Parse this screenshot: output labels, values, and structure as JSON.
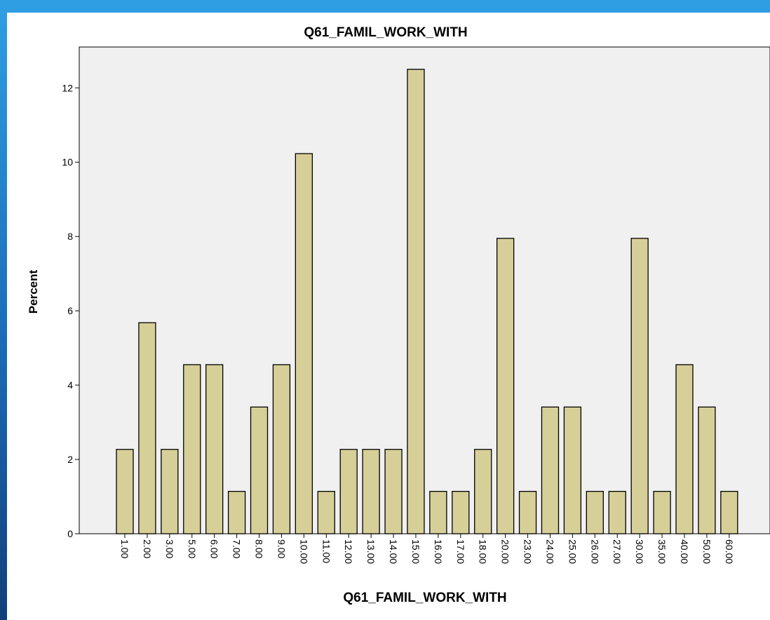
{
  "chart_data": {
    "type": "bar",
    "title": "Q61_FAMIL_WORK_WITH",
    "xlabel": "Q61_FAMIL_WORK_WITH",
    "ylabel": "Percent",
    "categories": [
      "1.00",
      "2.00",
      "3.00",
      "5.00",
      "6.00",
      "7.00",
      "8.00",
      "9.00",
      "10.00",
      "11.00",
      "12.00",
      "13.00",
      "14.00",
      "15.00",
      "16.00",
      "17.00",
      "18.00",
      "20.00",
      "23.00",
      "24.00",
      "25.00",
      "26.00",
      "27.00",
      "30.00",
      "35.00",
      "40.00",
      "50.00",
      "60.00"
    ],
    "values": [
      2.27,
      5.68,
      2.27,
      4.55,
      4.55,
      1.14,
      3.41,
      4.55,
      10.23,
      1.14,
      2.27,
      2.27,
      2.27,
      12.5,
      1.14,
      1.14,
      2.27,
      7.95,
      1.14,
      3.41,
      3.41,
      1.14,
      1.14,
      7.95,
      1.14,
      4.55,
      3.41,
      1.14
    ],
    "ylim": [
      0,
      13.1
    ],
    "yticks": [
      0,
      2,
      4,
      6,
      8,
      10,
      12
    ],
    "grid": false,
    "colors": {
      "bar_fill": "#d6cf98",
      "bar_stroke": "#000000",
      "plot_background": "#f0f0f0"
    }
  }
}
